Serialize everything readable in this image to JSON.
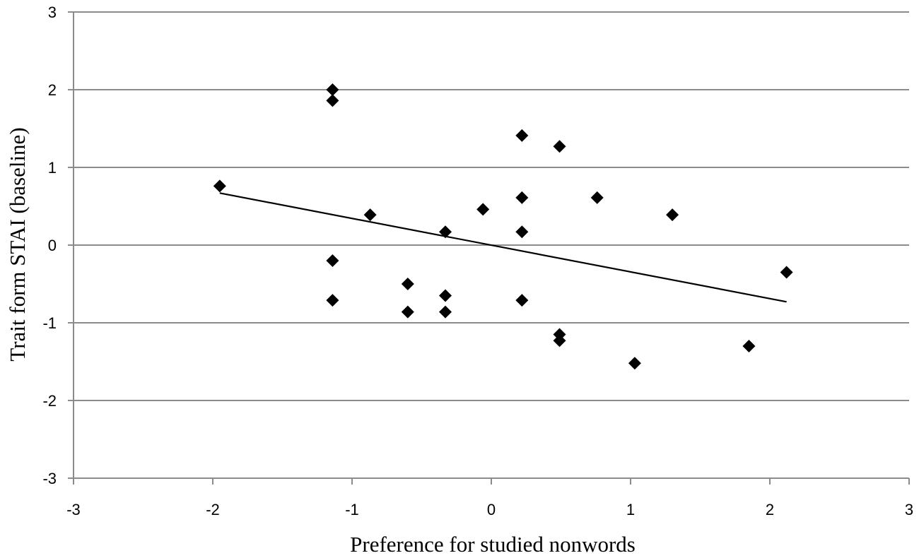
{
  "chart_data": {
    "type": "scatter",
    "xlabel": "Preference for studied nonwords",
    "ylabel": "Trait form STAI (baseline)",
    "xlim": [
      -3,
      3
    ],
    "ylim": [
      -3,
      3
    ],
    "x_ticks": [
      -3,
      -2,
      -1,
      0,
      1,
      2,
      3
    ],
    "y_ticks": [
      -3,
      -2,
      -1,
      0,
      1,
      2,
      3
    ],
    "x_tick_labels": [
      "-3",
      "-2",
      "-1",
      "0",
      "1",
      "2",
      "3"
    ],
    "y_tick_labels": [
      "-3",
      "-2",
      "-1",
      "0",
      "1",
      "2",
      "3"
    ],
    "grid": "horizontal",
    "marker": "diamond",
    "series": [
      {
        "points": [
          {
            "x": -1.95,
            "y": 0.76
          },
          {
            "x": -1.14,
            "y": 2.0
          },
          {
            "x": -1.14,
            "y": 1.86
          },
          {
            "x": -1.14,
            "y": -0.2
          },
          {
            "x": -1.14,
            "y": -0.71
          },
          {
            "x": -0.87,
            "y": 0.39
          },
          {
            "x": -0.6,
            "y": -0.5
          },
          {
            "x": -0.6,
            "y": -0.86
          },
          {
            "x": -0.33,
            "y": 0.17
          },
          {
            "x": -0.33,
            "y": -0.65
          },
          {
            "x": -0.33,
            "y": -0.86
          },
          {
            "x": -0.06,
            "y": 0.46
          },
          {
            "x": 0.22,
            "y": 1.41
          },
          {
            "x": 0.22,
            "y": 0.61
          },
          {
            "x": 0.22,
            "y": 0.17
          },
          {
            "x": 0.22,
            "y": -0.71
          },
          {
            "x": 0.49,
            "y": 1.27
          },
          {
            "x": 0.49,
            "y": -1.15
          },
          {
            "x": 0.49,
            "y": -1.23
          },
          {
            "x": 0.76,
            "y": 0.61
          },
          {
            "x": 1.03,
            "y": -1.52
          },
          {
            "x": 1.3,
            "y": 0.39
          },
          {
            "x": 1.85,
            "y": -1.3
          },
          {
            "x": 2.12,
            "y": -0.35
          }
        ]
      }
    ],
    "trendline": {
      "type": "linear",
      "x": [
        -1.95,
        2.12
      ],
      "y": [
        0.67,
        -0.73
      ]
    }
  }
}
